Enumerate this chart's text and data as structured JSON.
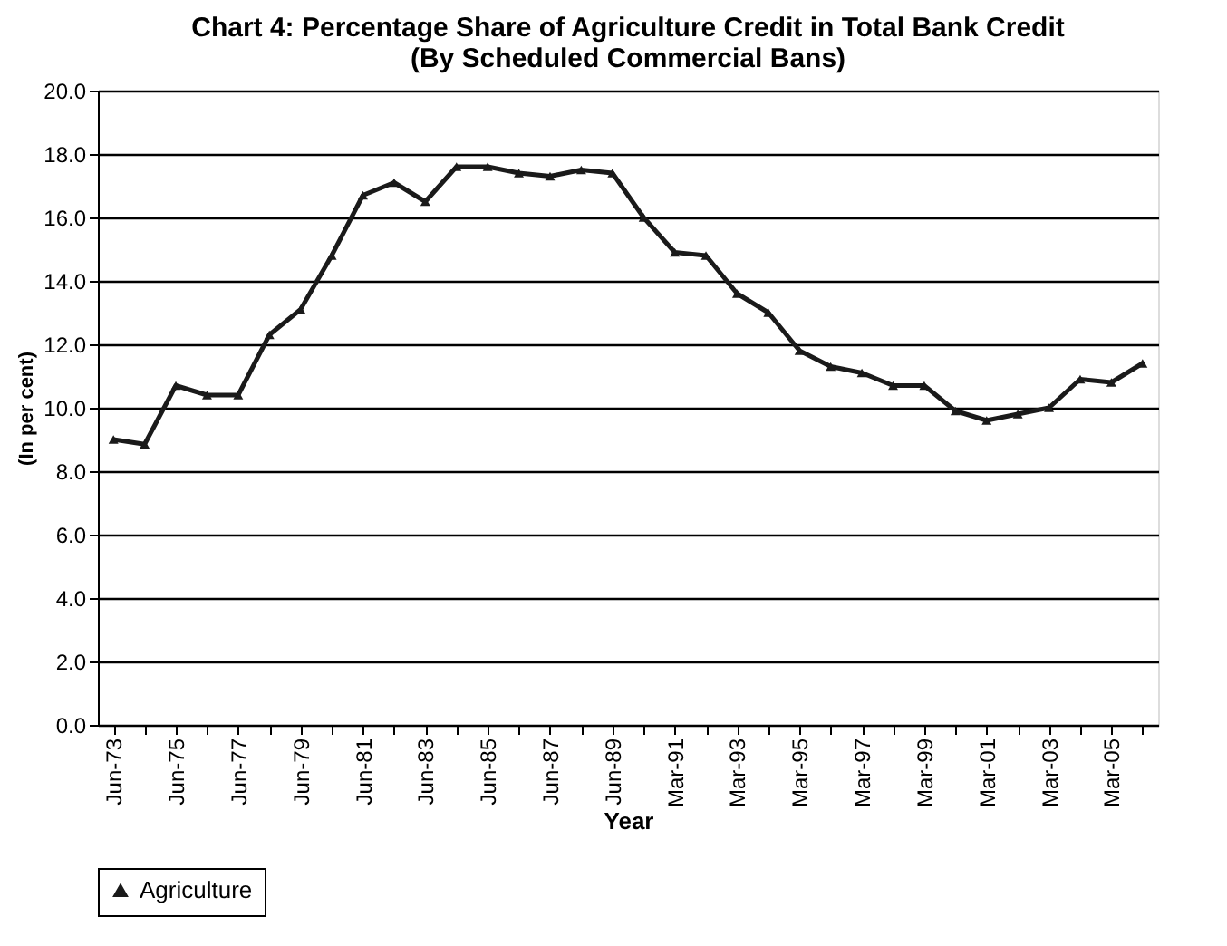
{
  "chart_data": {
    "type": "line",
    "title": "Chart 4: Percentage Share of Agriculture Credit in Total Bank Credit\n(By Scheduled Commercial Bans)",
    "xlabel": "Year",
    "ylabel": "(In per cent)",
    "categories": [
      "Jun-73",
      null,
      "Jun-75",
      null,
      "Jun-77",
      null,
      "Jun-79",
      null,
      "Jun-81",
      null,
      "Jun-83",
      null,
      "Jun-85",
      null,
      "Jun-87",
      null,
      "Jun-89",
      null,
      "Mar-91",
      null,
      "Mar-93",
      null,
      "Mar-95",
      null,
      "Mar-97",
      null,
      "Mar-99",
      null,
      "Mar-01",
      null,
      "Mar-03",
      null,
      "Mar-05",
      null
    ],
    "series": [
      {
        "name": "Agriculture",
        "color": "#1a1a1a",
        "values": [
          9.0,
          8.85,
          10.7,
          10.4,
          10.4,
          12.3,
          13.1,
          14.8,
          16.7,
          17.1,
          16.5,
          17.6,
          17.6,
          17.4,
          17.3,
          17.5,
          17.4,
          16.0,
          14.9,
          14.8,
          13.6,
          13.0,
          11.8,
          11.3,
          11.1,
          10.7,
          10.7,
          9.9,
          9.6,
          9.8,
          10.0,
          10.9,
          10.8,
          11.4
        ]
      }
    ],
    "ylim": [
      0,
      20
    ],
    "yticks": [
      {
        "value": 0,
        "label": "0.0"
      },
      {
        "value": 2,
        "label": "2.0"
      },
      {
        "value": 4,
        "label": "4.0"
      },
      {
        "value": 6,
        "label": "6.0"
      },
      {
        "value": 8,
        "label": "8.0"
      },
      {
        "value": 10,
        "label": "10.0"
      },
      {
        "value": 12,
        "label": "12.0"
      },
      {
        "value": 14,
        "label": "14.0"
      },
      {
        "value": 16,
        "label": "16.0"
      },
      {
        "value": 18,
        "label": "18.0"
      },
      {
        "value": 20,
        "label": "20.0"
      }
    ],
    "grid": "y",
    "legend": "bottom",
    "marker": "triangle",
    "line_style": "solid"
  }
}
